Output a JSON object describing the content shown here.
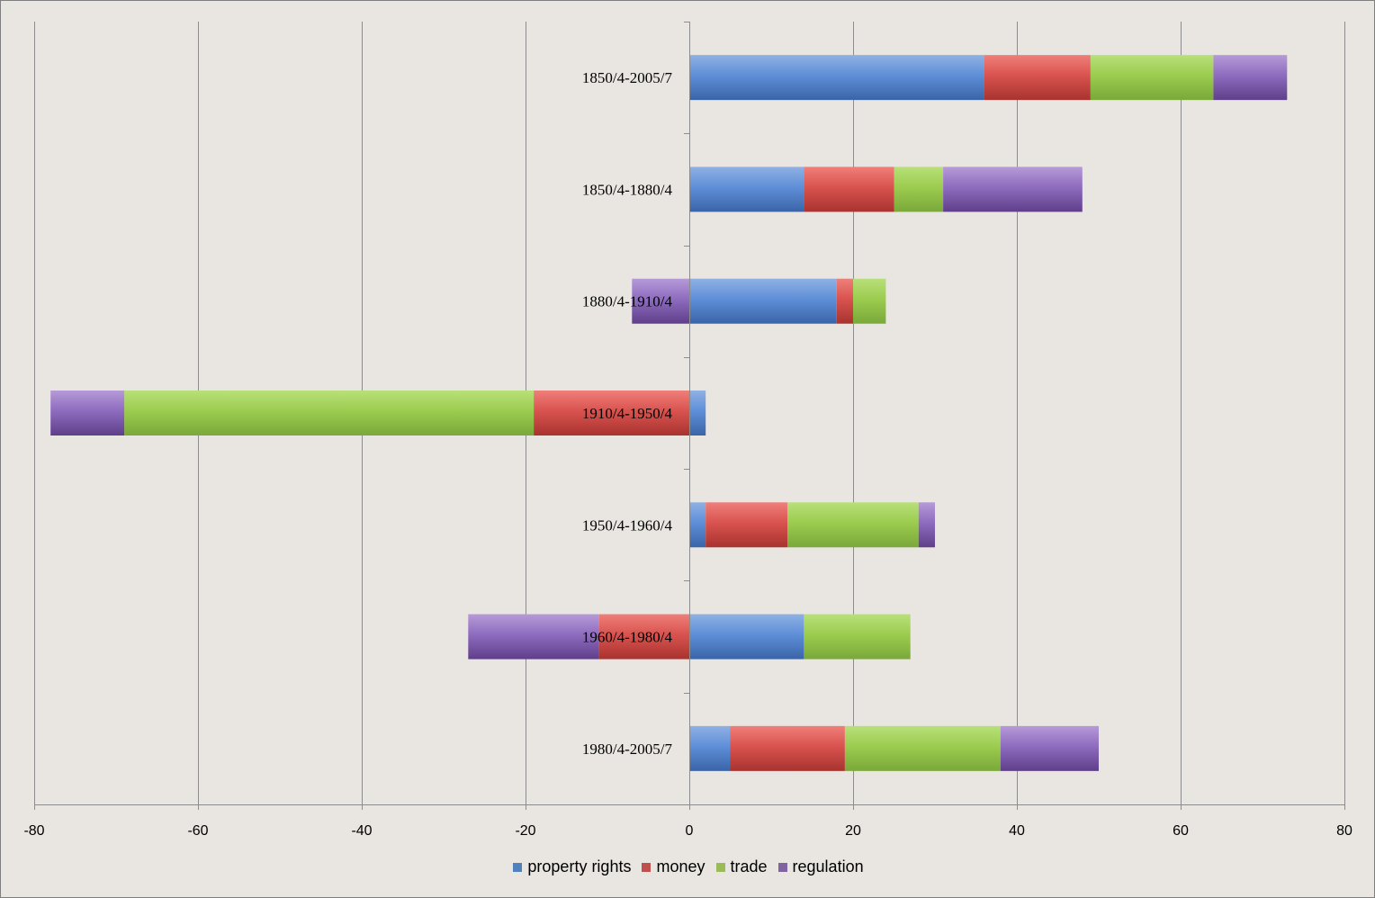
{
  "chart_data": {
    "type": "bar",
    "orientation": "horizontal",
    "stacked": true,
    "title": "",
    "xlabel": "",
    "ylabel": "",
    "xlim": [
      -80,
      80
    ],
    "xticks": [
      -80,
      -60,
      -40,
      -20,
      0,
      20,
      40,
      60,
      80
    ],
    "grid": true,
    "legend_position": "bottom",
    "categories": [
      "1850/4-2005/7",
      "1850/4-1880/4",
      "1880/4-1910/4",
      "1910/4-1950/4",
      "1950/4-1960/4",
      "1960/4-1980/4",
      "1980/4-2005/7"
    ],
    "series": [
      {
        "name": "property rights",
        "color": "#4f81bd",
        "values": [
          36,
          14,
          18,
          2,
          2,
          14,
          5
        ]
      },
      {
        "name": "money",
        "color": "#c0504d",
        "values": [
          13,
          11,
          2,
          -19,
          10,
          -11,
          14
        ]
      },
      {
        "name": "trade",
        "color": "#9bbb59",
        "values": [
          15,
          6,
          4,
          -50,
          16,
          13,
          19
        ]
      },
      {
        "name": "regulation",
        "color": "#8064a2",
        "values": [
          9,
          17,
          -7,
          -9,
          2,
          -16,
          12
        ]
      }
    ]
  }
}
